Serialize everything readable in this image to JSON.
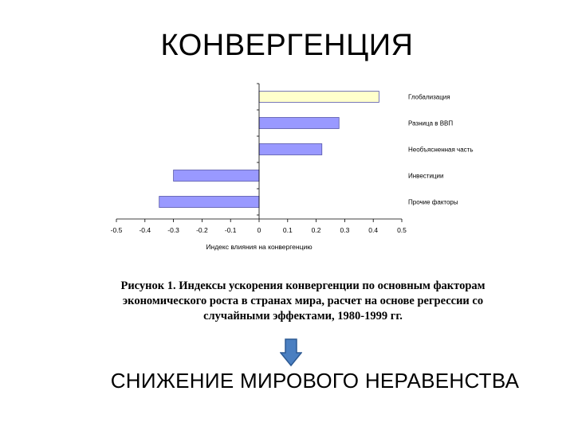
{
  "slide": {
    "title": "КОНВЕРГЕНЦИЯ",
    "caption": "Рисунок 1. Индексы ускорения конвергенции по основным факторам экономического роста в странах мира, расчет на основе регрессии со случайными эффектами, 1980-1999 гг.",
    "arrow_icon": "down-arrow-icon",
    "conclusion": "СНИЖЕНИЕ МИРОВОГО НЕРАВЕНСТВА"
  },
  "chart_data": {
    "type": "bar",
    "orientation": "horizontal",
    "categories": [
      "Глобализация",
      "Разница в ВВП",
      "Необъясненная часть",
      "Инвестиции",
      "Прочие факторы"
    ],
    "values": [
      0.42,
      0.28,
      0.22,
      -0.3,
      -0.35
    ],
    "colors": [
      "#ffffcc",
      "#9999ff",
      "#9999ff",
      "#9999ff",
      "#9999ff"
    ],
    "edge_color": "#5555aa",
    "xlabel": "Индекс влияния на конвергенцию",
    "xlim": [
      -0.5,
      0.5
    ],
    "xticks": [
      "-0.5",
      "-0.4",
      "-0.3",
      "-0.2",
      "-0.1",
      "0",
      "0.1",
      "0.2",
      "0.3",
      "0.4",
      "0.5"
    ],
    "grid": false,
    "legend": "category labels on right"
  }
}
